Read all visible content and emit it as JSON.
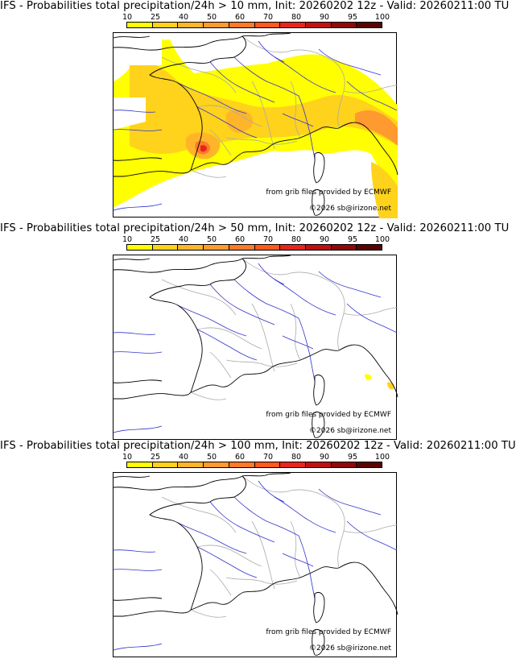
{
  "colorbar": {
    "labels": [
      "10",
      "25",
      "40",
      "50",
      "60",
      "70",
      "80",
      "90",
      "95",
      "100"
    ],
    "colors": [
      "#ffff00",
      "#ffd21c",
      "#ffb52a",
      "#ff9a2e",
      "#ff7a28",
      "#ff5a1c",
      "#e8251a",
      "#c01010",
      "#900808",
      "#5a0404"
    ]
  },
  "panels": [
    {
      "title": "IFS - Probabilities total precipitation/24h > 10 mm, Init: 20260202 12z - Valid: 20260211:00 TU",
      "threshold_mm": 10,
      "credit_source": "from grib files provided by ECMWF",
      "credit_copyright": "©2026 sb@irizone.net"
    },
    {
      "title": "IFS - Probabilities total precipitation/24h > 50 mm, Init: 20260202 12z - Valid: 20260211:00 TU",
      "threshold_mm": 50,
      "credit_source": "from grib files provided by ECMWF",
      "credit_copyright": "©2026 sb@irizone.net"
    },
    {
      "title": "IFS - Probabilities total precipitation/24h > 100 mm, Init: 20260202 12z - Valid: 20260211:00 TU",
      "threshold_mm": 100,
      "credit_source": "from grib files provided by ECMWF",
      "credit_copyright": "©2026 sb@irizone.net"
    }
  ],
  "colors": {
    "coast": "#000000",
    "rivers": "#3333cc",
    "borders": "#aaaaaa"
  }
}
